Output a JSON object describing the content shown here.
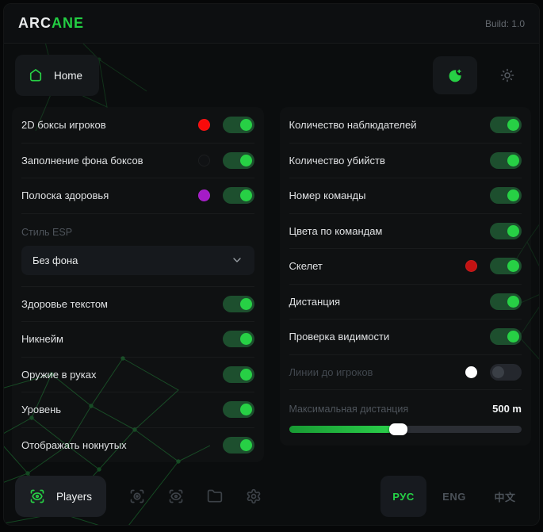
{
  "header": {
    "brand_prefix": "ARC",
    "brand_suffix": "ANE",
    "build_label": "Build: 1.0"
  },
  "nav": {
    "home_label": "Home"
  },
  "left_panel": {
    "rows_top": [
      {
        "label": "2D боксы игроков",
        "color": "#fa0a0a",
        "on": true
      },
      {
        "label": "Заполнение фона боксов",
        "color": "#101214",
        "on": true
      },
      {
        "label": "Полоска здоровья",
        "color": "#a51bc8",
        "on": true
      }
    ],
    "style_esp": {
      "label": "Стиль ESP",
      "value": "Без фона"
    },
    "rows_bottom": [
      {
        "label": "Здоровье текстом",
        "on": true
      },
      {
        "label": "Никнейм",
        "on": true
      },
      {
        "label": "Оружие в руках",
        "on": true
      },
      {
        "label": "Уровень",
        "on": true
      },
      {
        "label": "Отображать нокнутых",
        "on": true
      }
    ]
  },
  "right_panel": {
    "rows": [
      {
        "label": "Количество наблюдателей",
        "on": true
      },
      {
        "label": "Количество убийств",
        "on": true
      },
      {
        "label": "Номер команды",
        "on": true
      },
      {
        "label": "Цвета по командам",
        "on": true
      },
      {
        "label": "Скелет",
        "color": "#c31212",
        "on": true
      },
      {
        "label": "Дистанция",
        "on": true
      },
      {
        "label": "Проверка видимости",
        "on": true
      },
      {
        "label": "Линии до игроков",
        "color": "#ffffff",
        "on": false,
        "disabled": true
      }
    ],
    "max_distance": {
      "label": "Максимальная дистанция",
      "value": "500 m",
      "percent": 47
    }
  },
  "footer": {
    "players_label": "Players",
    "languages": [
      {
        "label": "РУС",
        "active": true
      },
      {
        "label": "ENG",
        "active": false
      },
      {
        "label": "中文",
        "active": false
      }
    ]
  },
  "colors": {
    "accent": "#23cf43",
    "toggle_track_on": "#1d4f2e",
    "toggle_knob_on": "#27d045",
    "red_swatch": "#fa0a0a",
    "purple_swatch": "#a51bc8",
    "skeleton_red_swatch": "#c31212",
    "white_swatch": "#ffffff"
  }
}
